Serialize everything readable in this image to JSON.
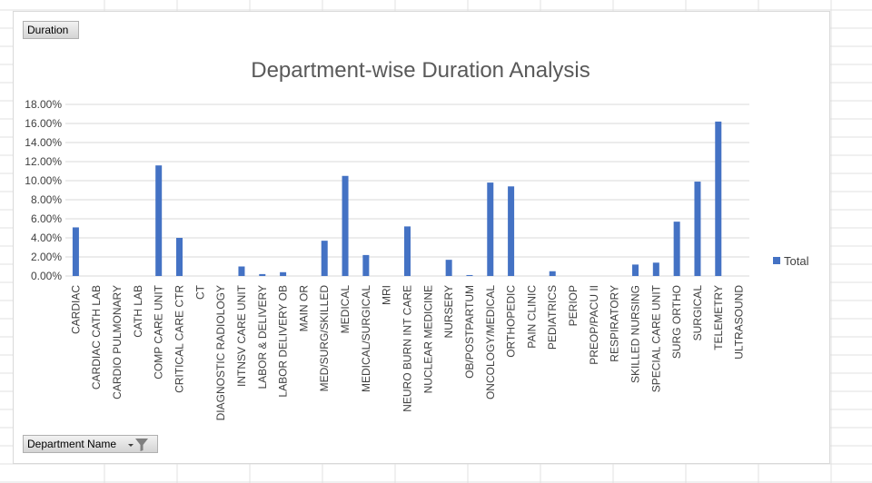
{
  "field_buttons": {
    "values_field": "Duration",
    "axis_field": "Department  Name"
  },
  "colors": {
    "bar": "#4472c4",
    "grid": "#d9d9d9",
    "cell_grid": "#e0e0e0",
    "text": "#404040",
    "title": "#595959"
  },
  "icons": {
    "filter": "funnel-filter-icon",
    "dropdown": "dropdown-arrow-icon"
  },
  "chart_data": {
    "type": "bar",
    "title": "Department-wise Duration Analysis",
    "xlabel": "",
    "ylabel": "",
    "ylim": [
      0,
      0.18
    ],
    "yticks": [
      "0.00%",
      "2.00%",
      "4.00%",
      "6.00%",
      "8.00%",
      "10.00%",
      "12.00%",
      "14.00%",
      "16.00%",
      "18.00%"
    ],
    "grid": true,
    "legend_position": "right",
    "categories": [
      "CARDIAC",
      "CARDIAC CATH LAB",
      "CARDIO PULMONARY",
      "CATH LAB",
      "COMP CARE UNIT",
      "CRITICAL CARE CTR",
      "CT",
      "DIAGNOSTIC RADIOLOGY",
      "INTNSV CARE UNIT",
      "LABOR & DELIVERY",
      "LABOR DELIVERY OB",
      "MAIN OR",
      "MED/SURG/SKILLED",
      "MEDICAL",
      "MEDICAL/SURGICAL",
      "MRI",
      "NEURO BURN INT CARE",
      "NUCLEAR MEDICINE",
      "NURSERY",
      "OB/POSTPARTUM",
      "ONCOLOGY/MEDICAL",
      "ORTHOPEDIC",
      "PAIN CLINIC",
      "PEDIATRICS",
      "PERIOP",
      "PREOP/PACU II",
      "RESPIRATORY",
      "SKILLED NURSING",
      "SPECIAL CARE UNIT",
      "SURG ORTHO",
      "SURGICAL",
      "TELEMETRY",
      "ULTRASOUND"
    ],
    "series": [
      {
        "name": "Total",
        "values": [
          0.051,
          0,
          0,
          0,
          0.116,
          0.04,
          0,
          0,
          0.01,
          0.002,
          0.004,
          0,
          0.037,
          0.105,
          0.022,
          0,
          0.052,
          0,
          0.017,
          0.001,
          0.098,
          0.094,
          0,
          0.005,
          0,
          0,
          0,
          0.012,
          0.014,
          0.057,
          0.099,
          0.162,
          0
        ]
      }
    ]
  }
}
